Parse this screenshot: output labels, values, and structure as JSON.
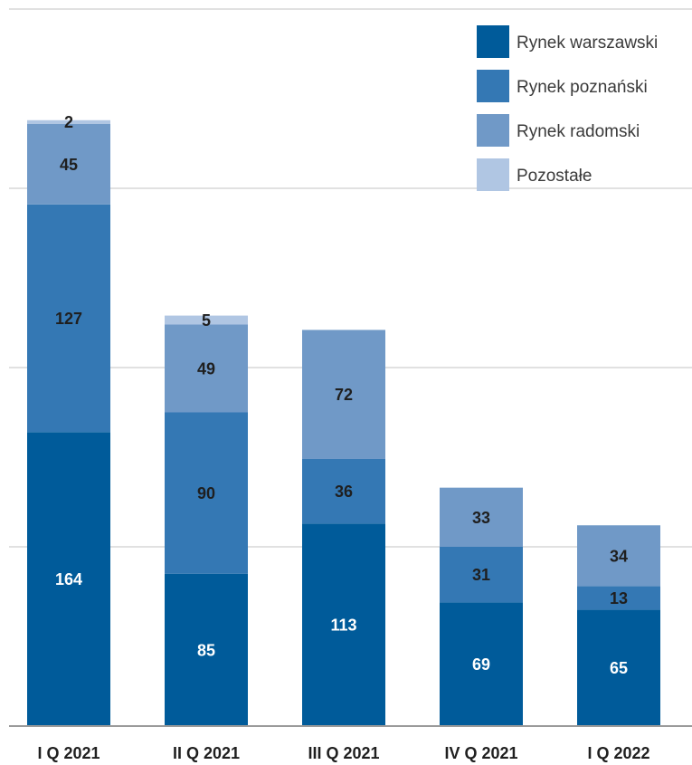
{
  "chart_data": {
    "type": "bar",
    "stacked": true,
    "categories": [
      "I Q 2021",
      "II Q 2021",
      "III Q 2021",
      "IV Q 2021",
      "I Q 2022"
    ],
    "series": [
      {
        "name": "Rynek warszawski",
        "values": [
          164,
          85,
          113,
          69,
          65
        ],
        "color": "#005b9a",
        "label_color": "#ffffff"
      },
      {
        "name": "Rynek poznański",
        "values": [
          127,
          90,
          36,
          31,
          13
        ],
        "color": "#3478b4",
        "label_color": "#1f1f1f"
      },
      {
        "name": "Rynek radomski",
        "values": [
          45,
          49,
          72,
          33,
          34
        ],
        "color": "#7099c7",
        "label_color": "#1f1f1f"
      },
      {
        "name": "Pozostałe",
        "values": [
          2,
          5,
          null,
          null,
          null
        ],
        "color": "#b0c6e3",
        "label_color": "#1f1f1f"
      }
    ],
    "ylim": [
      0,
      400
    ],
    "y_gridlines": [
      100,
      200,
      300,
      400
    ],
    "grid": true,
    "legend": "top-right",
    "title": "",
    "xlabel": "",
    "ylabel": ""
  }
}
